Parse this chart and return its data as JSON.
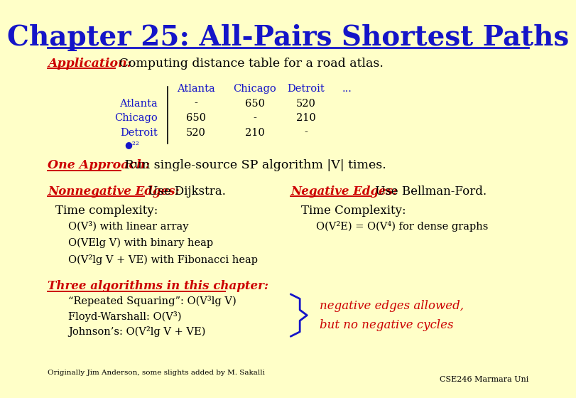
{
  "bg_color": "#FFFFC8",
  "title": "Chapter 25: All-Pairs Shortest Paths",
  "title_color": "#1515C8",
  "title_fontsize": 28,
  "body_color": "#000000",
  "red_color": "#CC0000",
  "blue_color": "#1515C8",
  "brace_text_1": "negative edges allowed,",
  "brace_text_2": "but no negative cycles",
  "cse_text": "CSE246 Marmara Uni",
  "footnote": "Originally Jim Anderson, some slights added by M. Sakalli",
  "table_headers": [
    "Atlanta",
    "Chicago",
    "Detroit",
    "..."
  ],
  "table_rows": [
    [
      "Atlanta",
      "-",
      "650",
      "520"
    ],
    [
      "Chicago",
      "650",
      "-",
      "210"
    ],
    [
      "Detroit",
      "520",
      "210",
      "-"
    ]
  ],
  "items_left": [
    "O(V³) with linear array",
    "O(VElg V) with binary heap",
    "O(V²lg V + VE) with Fibonacci heap"
  ],
  "item_right": "O(V²E) = O(V⁴) for dense graphs",
  "algs": [
    "“Repeated Squaring”: O(V³lg V)",
    "Floyd-Warshall: O(V³)",
    "Johnson’s: O(V²lg V + VE)"
  ]
}
